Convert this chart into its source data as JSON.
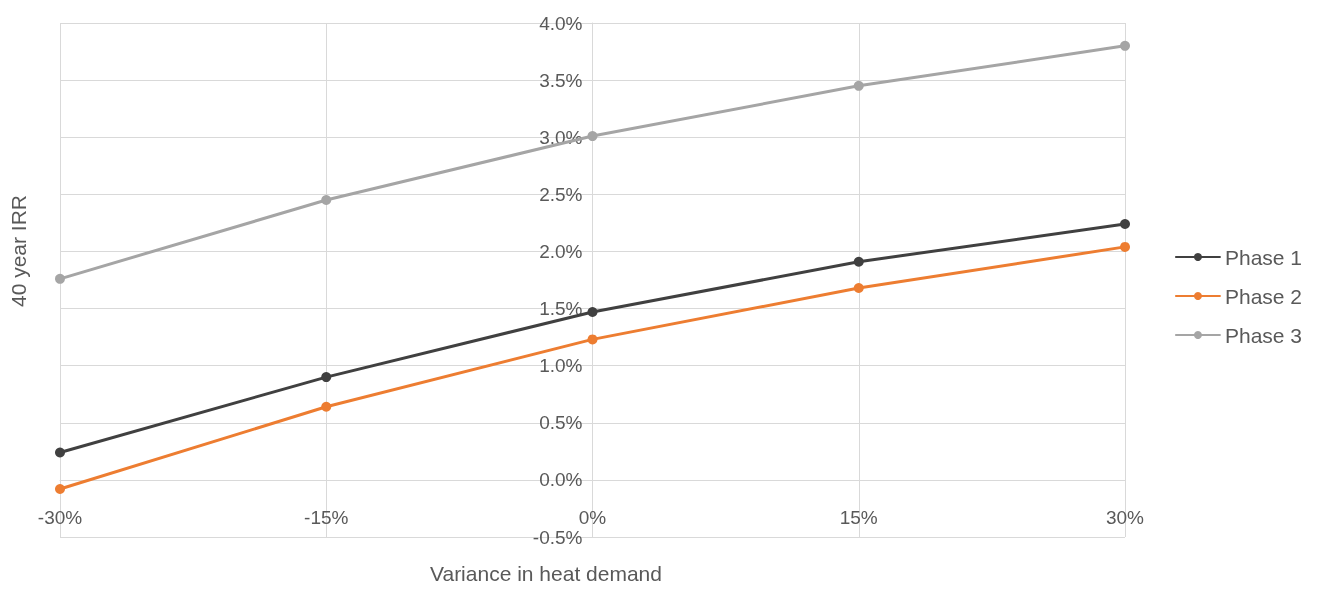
{
  "chart_data": {
    "type": "line",
    "xlabel": "Variance in heat demand",
    "ylabel": "40 year IRR",
    "x": [
      -30,
      -15,
      0,
      15,
      30
    ],
    "series": [
      {
        "name": "Phase 1",
        "color": "#404040",
        "values": [
          0.24,
          0.9,
          1.47,
          1.91,
          2.24
        ]
      },
      {
        "name": "Phase 2",
        "color": "#ed7d31",
        "values": [
          -0.08,
          0.64,
          1.23,
          1.68,
          2.04
        ]
      },
      {
        "name": "Phase 3",
        "color": "#a5a5a5",
        "values": [
          1.76,
          2.45,
          3.01,
          3.45,
          3.8
        ]
      }
    ],
    "xlim": [
      -30,
      30
    ],
    "xticks": [
      {
        "value": -30,
        "label": "-30%"
      },
      {
        "value": -15,
        "label": "-15%"
      },
      {
        "value": 0,
        "label": "0%"
      },
      {
        "value": 15,
        "label": "15%"
      },
      {
        "value": 30,
        "label": "30%"
      }
    ],
    "ylim": [
      -0.5,
      4
    ],
    "yticks": [
      {
        "value": -0.5,
        "label": "-0.5%"
      },
      {
        "value": 0,
        "label": "0.0%"
      },
      {
        "value": 0.5,
        "label": "0.5%"
      },
      {
        "value": 1,
        "label": "1.0%"
      },
      {
        "value": 1.5,
        "label": "1.5%"
      },
      {
        "value": 2,
        "label": "2.0%"
      },
      {
        "value": 2.5,
        "label": "2.5%"
      },
      {
        "value": 3,
        "label": "3.0%"
      },
      {
        "value": 3.5,
        "label": "3.5%"
      },
      {
        "value": 4,
        "label": "4.0%"
      }
    ],
    "grid": true,
    "legend": "right",
    "marker": "circle",
    "line_style": "solid"
  }
}
